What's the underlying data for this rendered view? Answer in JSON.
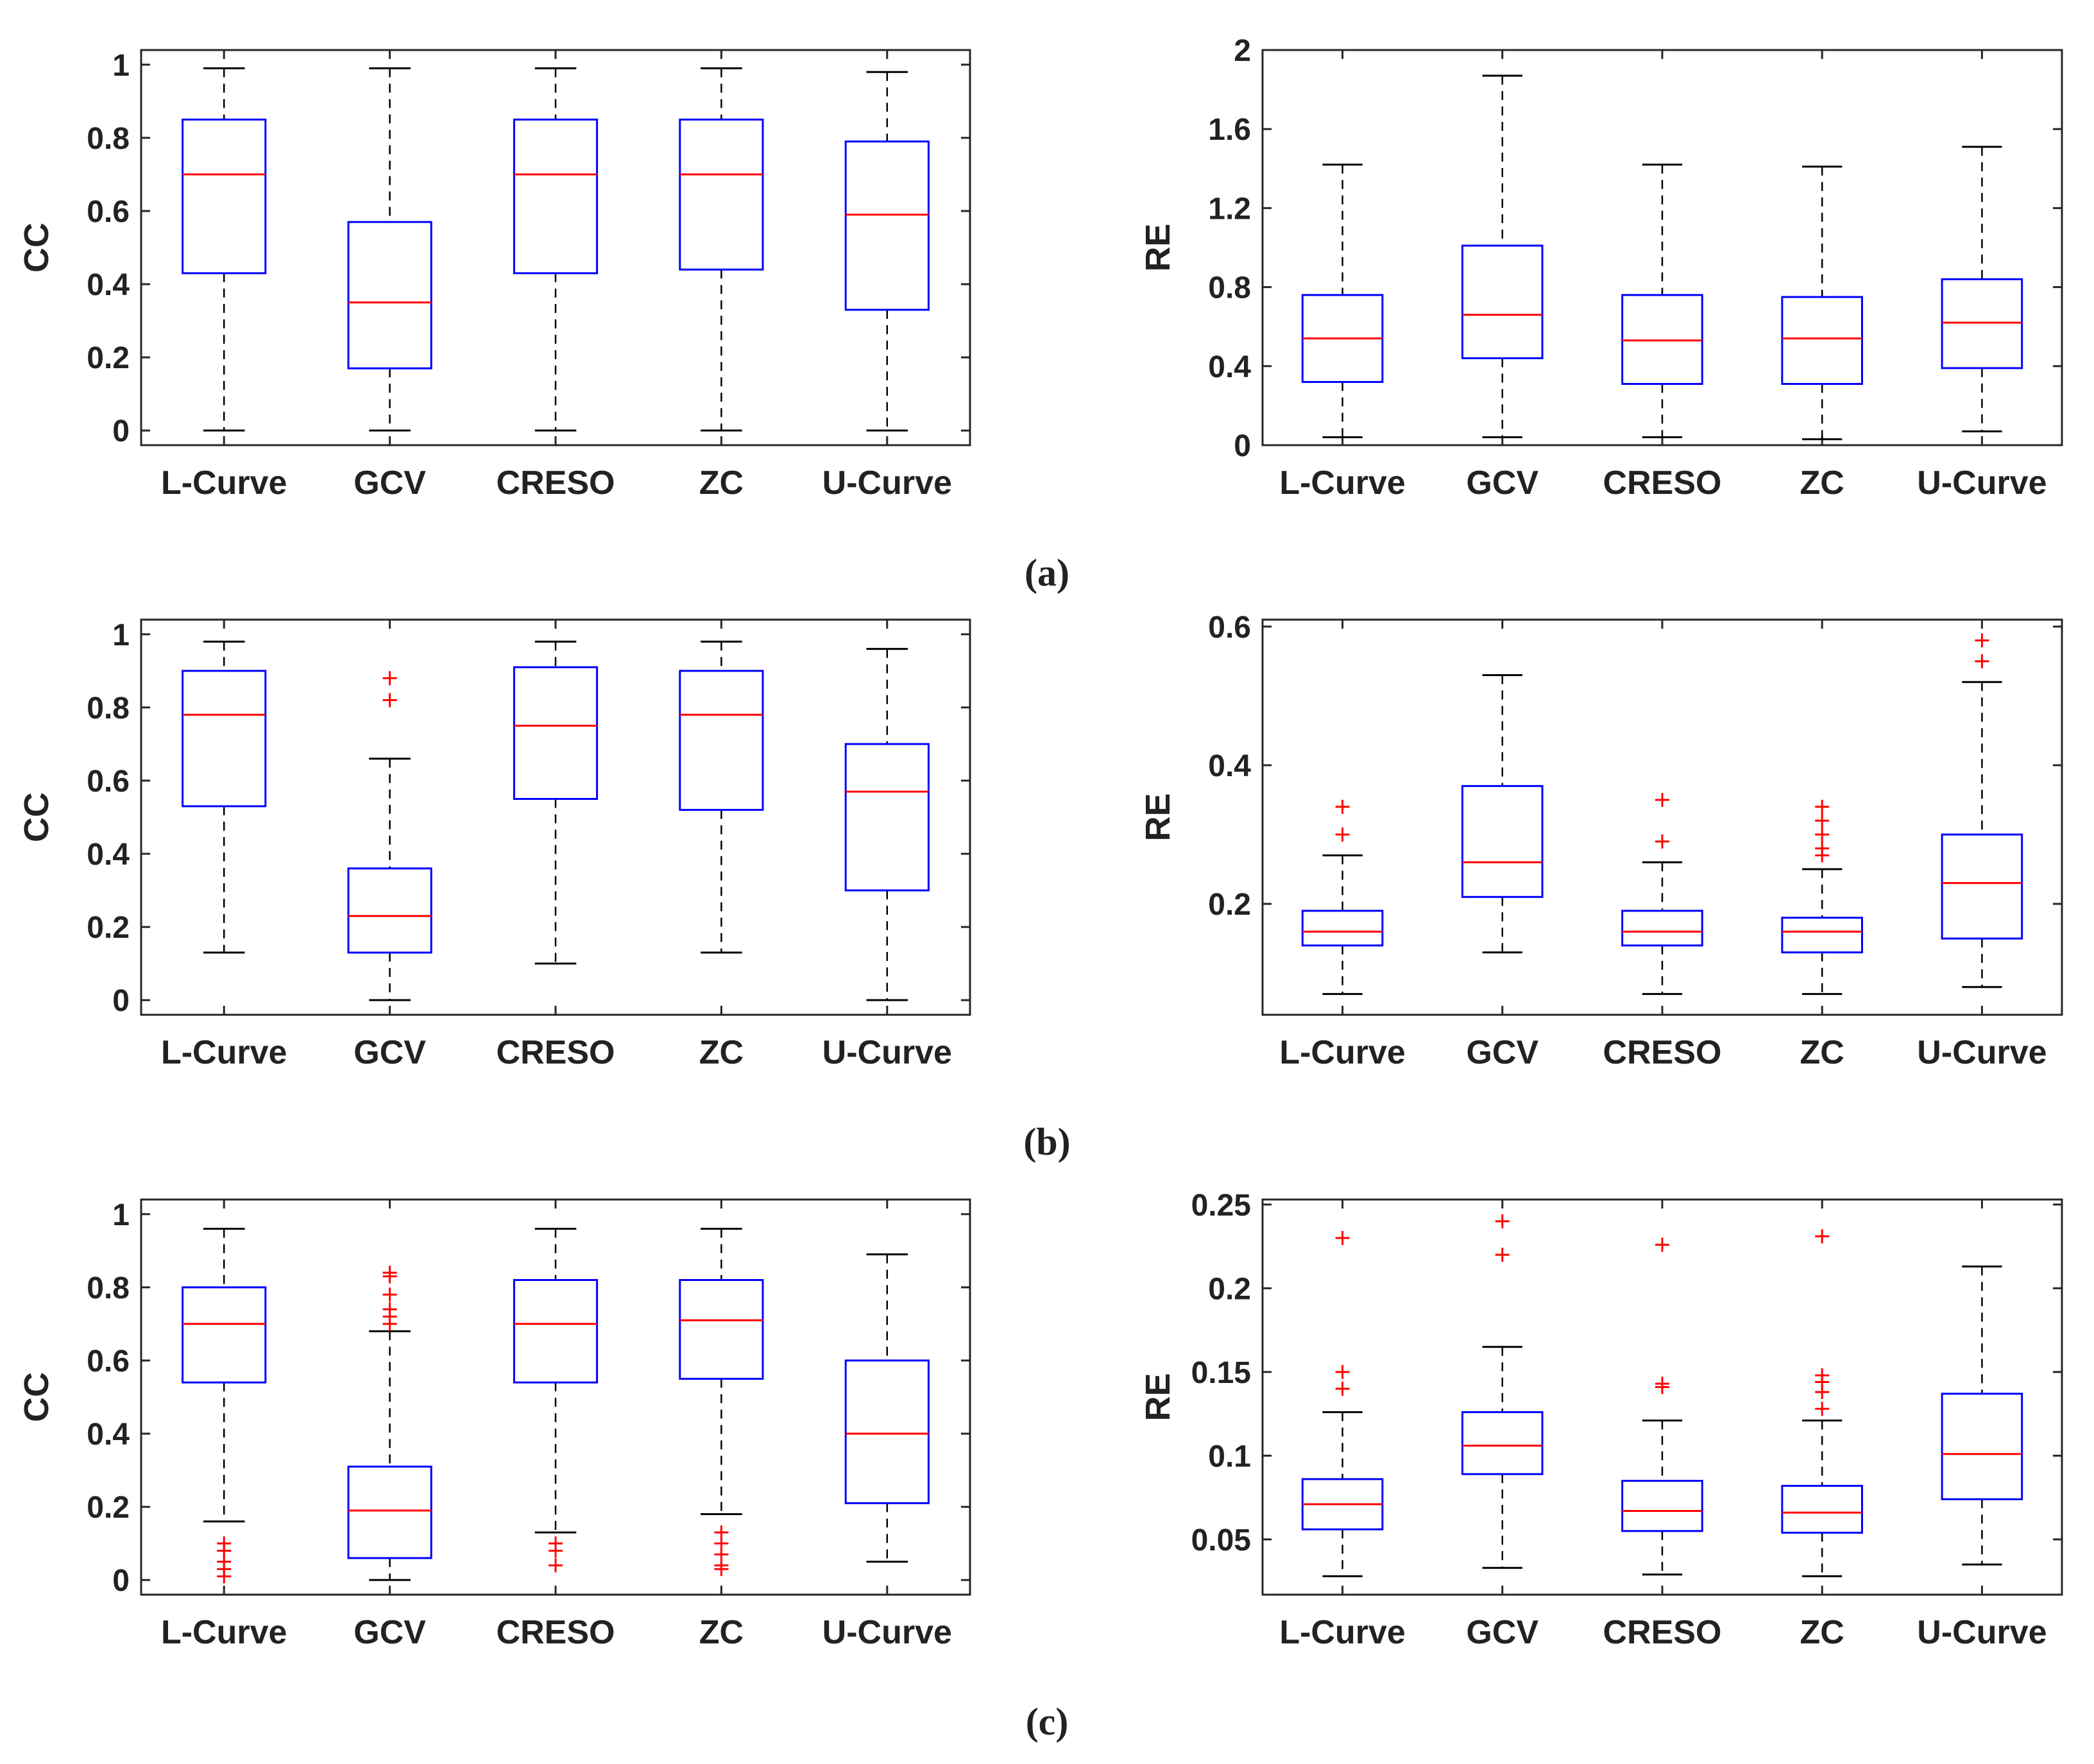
{
  "colors": {
    "box": "#0000ff",
    "median": "#ff0000",
    "whisker": "#000000",
    "outlier": "#ff0000",
    "axis": "#262626"
  },
  "rows": [
    {
      "caption": "(a)"
    },
    {
      "caption": "(b)"
    },
    {
      "caption": "(c)"
    }
  ],
  "chart_data": [
    {
      "panel": "(a) left",
      "type": "boxplot",
      "ylabel": "CC",
      "ylim": [
        -0.04,
        1.04
      ],
      "yticks": [
        0,
        0.2,
        0.4,
        0.6,
        0.8,
        1
      ],
      "ytick_labels": [
        "0",
        "0.2",
        "0.4",
        "0.6",
        "0.8",
        "1"
      ],
      "categories": [
        "L-Curve",
        "GCV",
        "CRESO",
        "ZC",
        "U-Curve"
      ],
      "boxes": [
        {
          "low": 0.0,
          "q1": 0.43,
          "median": 0.7,
          "q3": 0.85,
          "high": 0.99,
          "outliers": []
        },
        {
          "low": 0.0,
          "q1": 0.17,
          "median": 0.35,
          "q3": 0.57,
          "high": 0.99,
          "outliers": []
        },
        {
          "low": 0.0,
          "q1": 0.43,
          "median": 0.7,
          "q3": 0.85,
          "high": 0.99,
          "outliers": []
        },
        {
          "low": 0.0,
          "q1": 0.44,
          "median": 0.7,
          "q3": 0.85,
          "high": 0.99,
          "outliers": []
        },
        {
          "low": 0.0,
          "q1": 0.33,
          "median": 0.59,
          "q3": 0.79,
          "high": 0.98,
          "outliers": []
        }
      ]
    },
    {
      "panel": "(a) right",
      "type": "boxplot",
      "ylabel": "RE",
      "ylim": [
        0,
        2
      ],
      "yticks": [
        0,
        0.4,
        0.8,
        1.2,
        1.6,
        2
      ],
      "ytick_labels": [
        "0",
        "0.4",
        "0.8",
        "1.2",
        "1.6",
        "2"
      ],
      "categories": [
        "L-Curve",
        "GCV",
        "CRESO",
        "ZC",
        "U-Curve"
      ],
      "boxes": [
        {
          "low": 0.04,
          "q1": 0.32,
          "median": 0.54,
          "q3": 0.76,
          "high": 1.42,
          "outliers": []
        },
        {
          "low": 0.04,
          "q1": 0.44,
          "median": 0.66,
          "q3": 1.01,
          "high": 1.87,
          "outliers": []
        },
        {
          "low": 0.04,
          "q1": 0.31,
          "median": 0.53,
          "q3": 0.76,
          "high": 1.42,
          "outliers": []
        },
        {
          "low": 0.03,
          "q1": 0.31,
          "median": 0.54,
          "q3": 0.75,
          "high": 1.41,
          "outliers": []
        },
        {
          "low": 0.07,
          "q1": 0.39,
          "median": 0.62,
          "q3": 0.84,
          "high": 1.51,
          "outliers": []
        }
      ]
    },
    {
      "panel": "(b) left",
      "type": "boxplot",
      "ylabel": "CC",
      "ylim": [
        -0.04,
        1.04
      ],
      "yticks": [
        0,
        0.2,
        0.4,
        0.6,
        0.8,
        1
      ],
      "ytick_labels": [
        "0",
        "0.2",
        "0.4",
        "0.6",
        "0.8",
        "1"
      ],
      "categories": [
        "L-Curve",
        "GCV",
        "CRESO",
        "ZC",
        "U-Curve"
      ],
      "boxes": [
        {
          "low": 0.13,
          "q1": 0.53,
          "median": 0.78,
          "q3": 0.9,
          "high": 0.98,
          "outliers": []
        },
        {
          "low": 0.0,
          "q1": 0.13,
          "median": 0.23,
          "q3": 0.36,
          "high": 0.66,
          "outliers": [
            0.82,
            0.88
          ]
        },
        {
          "low": 0.1,
          "q1": 0.55,
          "median": 0.75,
          "q3": 0.91,
          "high": 0.98,
          "outliers": []
        },
        {
          "low": 0.13,
          "q1": 0.52,
          "median": 0.78,
          "q3": 0.9,
          "high": 0.98,
          "outliers": []
        },
        {
          "low": 0.0,
          "q1": 0.3,
          "median": 0.57,
          "q3": 0.7,
          "high": 0.96,
          "outliers": []
        }
      ]
    },
    {
      "panel": "(b) right",
      "type": "boxplot",
      "ylabel": "RE",
      "ylim": [
        0.04,
        0.61
      ],
      "yticks": [
        0.2,
        0.4,
        0.6
      ],
      "ytick_labels": [
        "0.2",
        "0.4",
        "0.6"
      ],
      "categories": [
        "L-Curve",
        "GCV",
        "CRESO",
        "ZC",
        "U-Curve"
      ],
      "boxes": [
        {
          "low": 0.07,
          "q1": 0.14,
          "median": 0.16,
          "q3": 0.19,
          "high": 0.27,
          "outliers": [
            0.3,
            0.34
          ]
        },
        {
          "low": 0.13,
          "q1": 0.21,
          "median": 0.26,
          "q3": 0.37,
          "high": 0.53,
          "outliers": []
        },
        {
          "low": 0.07,
          "q1": 0.14,
          "median": 0.16,
          "q3": 0.19,
          "high": 0.26,
          "outliers": [
            0.29,
            0.35
          ]
        },
        {
          "low": 0.07,
          "q1": 0.13,
          "median": 0.16,
          "q3": 0.18,
          "high": 0.25,
          "outliers": [
            0.27,
            0.28,
            0.3,
            0.32,
            0.34
          ]
        },
        {
          "low": 0.08,
          "q1": 0.15,
          "median": 0.23,
          "q3": 0.3,
          "high": 0.52,
          "outliers": [
            0.55,
            0.58
          ]
        }
      ]
    },
    {
      "panel": "(c) left",
      "type": "boxplot",
      "ylabel": "CC",
      "ylim": [
        -0.04,
        1.04
      ],
      "yticks": [
        0,
        0.2,
        0.4,
        0.6,
        0.8,
        1
      ],
      "ytick_labels": [
        "0",
        "0.2",
        "0.4",
        "0.6",
        "0.8",
        "1"
      ],
      "categories": [
        "L-Curve",
        "GCV",
        "CRESO",
        "ZC",
        "U-Curve"
      ],
      "boxes": [
        {
          "low": 0.16,
          "q1": 0.54,
          "median": 0.7,
          "q3": 0.8,
          "high": 0.96,
          "outliers": [
            0.01,
            0.03,
            0.05,
            0.08,
            0.1
          ]
        },
        {
          "low": 0.0,
          "q1": 0.06,
          "median": 0.19,
          "q3": 0.31,
          "high": 0.68,
          "outliers": [
            0.7,
            0.72,
            0.74,
            0.78,
            0.83,
            0.84
          ]
        },
        {
          "low": 0.13,
          "q1": 0.54,
          "median": 0.7,
          "q3": 0.82,
          "high": 0.96,
          "outliers": [
            0.04,
            0.08,
            0.1
          ]
        },
        {
          "low": 0.18,
          "q1": 0.55,
          "median": 0.71,
          "q3": 0.82,
          "high": 0.96,
          "outliers": [
            0.03,
            0.04,
            0.07,
            0.1,
            0.13
          ]
        },
        {
          "low": 0.05,
          "q1": 0.21,
          "median": 0.4,
          "q3": 0.6,
          "high": 0.89,
          "outliers": []
        }
      ]
    },
    {
      "panel": "(c) right",
      "type": "boxplot",
      "ylabel": "RE",
      "ylim": [
        0.017,
        0.253
      ],
      "yticks": [
        0.05,
        0.1,
        0.15,
        0.2,
        0.25
      ],
      "ytick_labels": [
        "0.05",
        "0.1",
        "0.15",
        "0.2",
        "0.25"
      ],
      "categories": [
        "L-Curve",
        "GCV",
        "CRESO",
        "ZC",
        "U-Curve"
      ],
      "boxes": [
        {
          "low": 0.028,
          "q1": 0.056,
          "median": 0.071,
          "q3": 0.086,
          "high": 0.126,
          "outliers": [
            0.14,
            0.15,
            0.23
          ]
        },
        {
          "low": 0.033,
          "q1": 0.089,
          "median": 0.106,
          "q3": 0.126,
          "high": 0.165,
          "outliers": [
            0.22,
            0.24
          ]
        },
        {
          "low": 0.029,
          "q1": 0.055,
          "median": 0.067,
          "q3": 0.085,
          "high": 0.121,
          "outliers": [
            0.141,
            0.143,
            0.226
          ]
        },
        {
          "low": 0.028,
          "q1": 0.054,
          "median": 0.066,
          "q3": 0.082,
          "high": 0.121,
          "outliers": [
            0.128,
            0.138,
            0.144,
            0.148,
            0.231
          ]
        },
        {
          "low": 0.035,
          "q1": 0.074,
          "median": 0.101,
          "q3": 0.137,
          "high": 0.213,
          "outliers": []
        }
      ]
    }
  ]
}
